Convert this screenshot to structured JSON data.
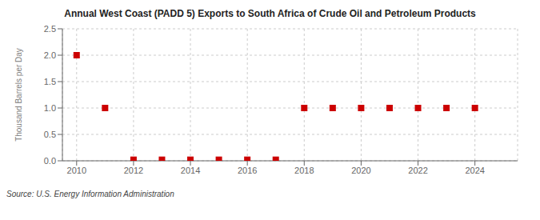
{
  "chart_data": {
    "type": "scatter",
    "title": "Annual West Coast (PADD 5) Exports to South Africa of Crude Oil and Petroleum Products",
    "ylabel": "Thousand Barrels per Day",
    "annotations": [
      "Source: U.S. Energy Information Administration"
    ],
    "x": [
      2010,
      2011,
      2012,
      2013,
      2014,
      2015,
      2016,
      2017,
      2018,
      2019,
      2020,
      2021,
      2022,
      2023,
      2024
    ],
    "values": [
      2.0,
      1.0,
      0.02,
      0.02,
      0.02,
      0.02,
      0.02,
      0.02,
      1.0,
      1.0,
      1.0,
      1.0,
      1.0,
      1.0,
      1.0
    ],
    "color": "#cc0000",
    "marker": "square",
    "xlim": [
      2009.5,
      2025.5
    ],
    "xticks": [
      2010,
      2012,
      2014,
      2016,
      2018,
      2020,
      2022,
      2024
    ],
    "ylim": [
      0.0,
      2.5
    ],
    "yticks": [
      {
        "value": 0.0,
        "label": "0.0"
      },
      0.5,
      {
        "value": 1.0,
        "label": "1.0"
      },
      1.5,
      {
        "value": 2.0,
        "label": "2.0"
      },
      2.5
    ],
    "grid": true
  }
}
